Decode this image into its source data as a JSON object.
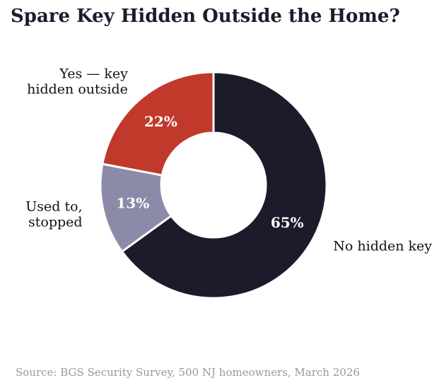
{
  "title": "Spare Key Hidden Outside the Home?",
  "source": "Source: BGS Security Survey, 500 NJ homeowners, March 2026",
  "chart_data": {
    "type": "pie",
    "title": "Spare Key Hidden Outside the Home?",
    "donut": true,
    "slices": [
      {
        "label": "No hidden key",
        "value": 65,
        "display": "65%",
        "color": "#1b1b2c"
      },
      {
        "label": "Used to, stopped",
        "value": 13,
        "display": "13%",
        "color": "#8b8aa8"
      },
      {
        "label": "Yes — key hidden outside",
        "value": 22,
        "display": "22%",
        "color": "#c0392b"
      }
    ],
    "slice_label_lines": [
      [
        "No hidden key"
      ],
      [
        "Used to,",
        "stopped"
      ],
      [
        "Yes — key",
        "hidden outside"
      ]
    ]
  }
}
